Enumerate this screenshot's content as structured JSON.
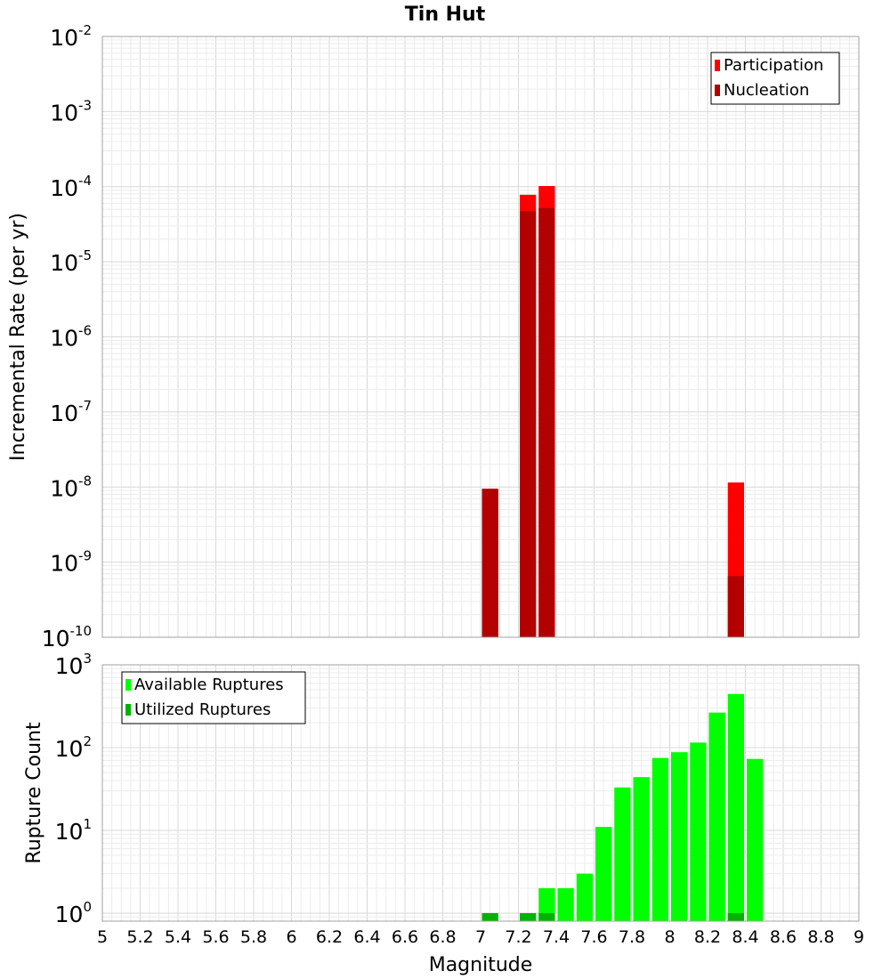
{
  "title": "Tin Hut",
  "xlabel": "Magnitude",
  "colors": {
    "participation": "#ff0000",
    "nucleation": "#b30000",
    "available": "#00ff00",
    "utilized": "#00b300"
  },
  "chart_data": [
    {
      "type": "bar",
      "ylabel": "Incremental Rate (per yr)",
      "yscale": "log",
      "ylim": [
        1e-10,
        0.01
      ],
      "xlim": [
        5,
        9
      ],
      "x_ticks": [
        "5",
        "5.2",
        "5.4",
        "5.6",
        "5.8",
        "6",
        "6.2",
        "6.4",
        "6.6",
        "6.8",
        "7",
        "7.2",
        "7.4",
        "7.6",
        "7.8",
        "8",
        "8.2",
        "8.4",
        "8.6",
        "8.8",
        "9"
      ],
      "y_ticks": [
        {
          "base": "10",
          "exp": "-2"
        },
        {
          "base": "10",
          "exp": "-3"
        },
        {
          "base": "10",
          "exp": "-4"
        },
        {
          "base": "10",
          "exp": "-5"
        },
        {
          "base": "10",
          "exp": "-6"
        },
        {
          "base": "10",
          "exp": "-7"
        },
        {
          "base": "10",
          "exp": "-8"
        },
        {
          "base": "10",
          "exp": "-9"
        },
        {
          "base": "10",
          "exp": "-10"
        }
      ],
      "legend": {
        "position": "top-right",
        "entries": [
          "Participation",
          "Nucleation"
        ]
      },
      "series": [
        {
          "name": "Participation",
          "x": [
            7.05,
            7.25,
            7.35,
            8.35
          ],
          "values": [
            9.5e-09,
            7.8e-05,
            0.000102,
            1.15e-08
          ]
        },
        {
          "name": "Nucleation",
          "x": [
            7.05,
            7.25,
            7.35,
            8.35
          ],
          "values": [
            9.5e-09,
            4.7e-05,
            5.2e-05,
            6.5e-10
          ]
        }
      ]
    },
    {
      "type": "bar",
      "ylabel": "Rupture Count",
      "yscale": "log",
      "ylim": [
        0.8,
        1000
      ],
      "xlim": [
        5,
        9
      ],
      "y_ticks": [
        {
          "base": "10",
          "exp": "3"
        },
        {
          "base": "10",
          "exp": "2"
        },
        {
          "base": "10",
          "exp": "1"
        },
        {
          "base": "10",
          "exp": "0"
        }
      ],
      "legend": {
        "position": "top-left",
        "entries": [
          "Available Ruptures",
          "Utilized Ruptures"
        ]
      },
      "series": [
        {
          "name": "Available Ruptures",
          "x": [
            7.05,
            7.25,
            7.35,
            7.45,
            7.55,
            7.65,
            7.75,
            7.85,
            7.95,
            8.05,
            8.15,
            8.25,
            8.35,
            8.45
          ],
          "values": [
            1,
            1,
            2,
            2,
            3,
            11,
            33,
            44,
            75,
            88,
            115,
            265,
            445,
            73
          ]
        },
        {
          "name": "Utilized Ruptures",
          "x": [
            7.05,
            7.25,
            7.35,
            8.35
          ],
          "values": [
            1,
            1,
            1,
            1
          ]
        }
      ]
    }
  ]
}
